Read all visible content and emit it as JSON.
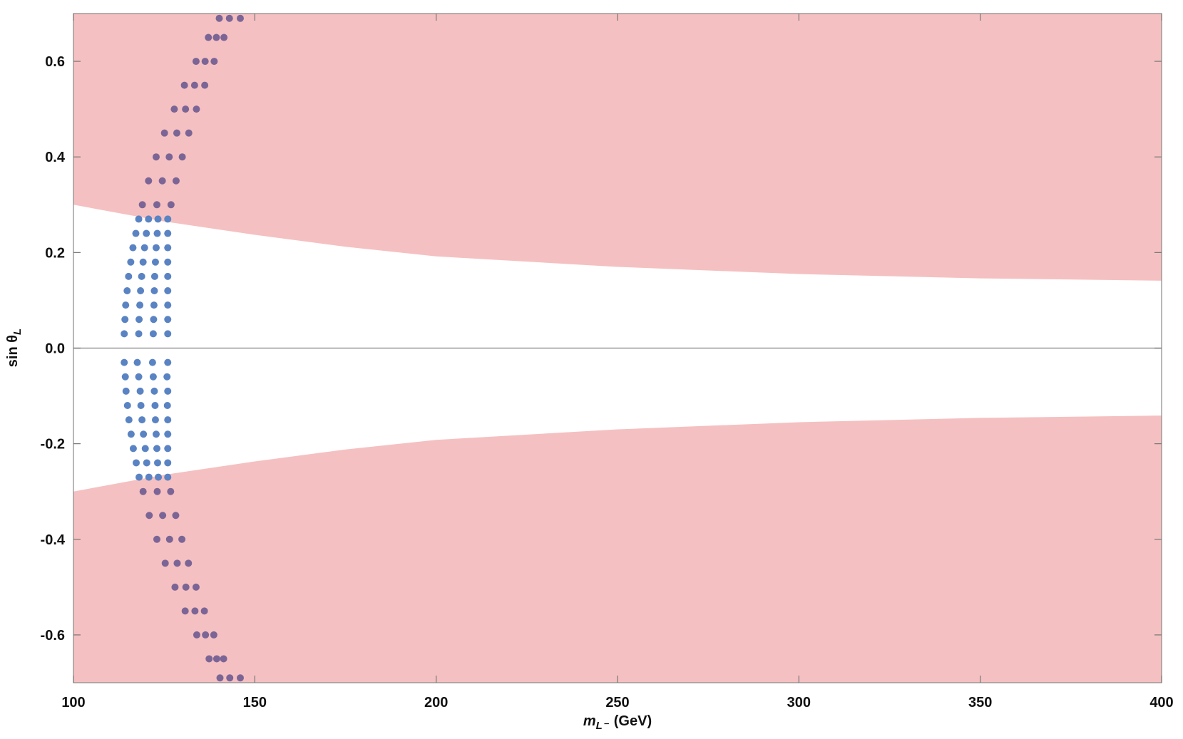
{
  "chart_data": {
    "type": "scatter",
    "x_label": {
      "symbol": "m",
      "subscript": "L⁻",
      "unit": "(GeV)"
    },
    "y_label": {
      "symbol": "sin θ",
      "subscript": "L"
    },
    "xlim": [
      100,
      400
    ],
    "ylim": [
      -0.7,
      0.7
    ],
    "xticks": [
      100,
      150,
      200,
      250,
      300,
      350,
      400
    ],
    "yticks": [
      -0.6,
      -0.4,
      -0.2,
      {
        "value": 0,
        "label": "0.0"
      },
      0.2,
      0.4,
      0.6
    ],
    "excluded_region": {
      "color": "#f5c0c1",
      "x": [
        100,
        125,
        150,
        175,
        200,
        250,
        300,
        350,
        400
      ],
      "upper": [
        0.3,
        0.265,
        0.237,
        0.212,
        0.192,
        0.17,
        0.155,
        0.146,
        0.141
      ],
      "lower": [
        -0.3,
        -0.265,
        -0.237,
        -0.212,
        -0.192,
        -0.17,
        -0.155,
        -0.146,
        -0.141
      ]
    },
    "series": [
      {
        "color": "#5a83c3",
        "x": [
          114,
          118,
          122,
          126,
          114.2,
          118.1,
          122.1,
          126,
          114.4,
          118.3,
          122.2,
          126,
          114.8,
          118.5,
          122.3,
          126,
          115.2,
          118.8,
          122.4,
          126,
          115.8,
          119.2,
          122.6,
          126,
          116.4,
          119.6,
          122.8,
          126,
          117.2,
          120.1,
          123.1,
          126,
          118,
          120.7,
          123.3,
          126,
          114,
          117.6,
          121.8,
          126,
          114.3,
          118,
          122,
          125.8,
          114.5,
          118.4,
          122.3,
          126,
          114.9,
          118.6,
          122.5,
          125.9,
          115.3,
          118.9,
          122.6,
          126,
          115.9,
          119.3,
          122.8,
          126,
          116.5,
          119.8,
          123,
          126,
          117.3,
          120.2,
          123.2,
          126,
          118.1,
          120.8,
          123.4,
          126
        ],
        "values": [
          0.03,
          0.03,
          0.03,
          0.03,
          0.06,
          0.06,
          0.06,
          0.06,
          0.09,
          0.09,
          0.09,
          0.09,
          0.12,
          0.12,
          0.12,
          0.12,
          0.15,
          0.15,
          0.15,
          0.15,
          0.18,
          0.18,
          0.18,
          0.18,
          0.21,
          0.21,
          0.21,
          0.21,
          0.24,
          0.24,
          0.24,
          0.24,
          0.27,
          0.27,
          0.27,
          0.27,
          -0.03,
          -0.03,
          -0.03,
          -0.03,
          -0.06,
          -0.06,
          -0.06,
          -0.06,
          -0.09,
          -0.09,
          -0.09,
          -0.09,
          -0.12,
          -0.12,
          -0.12,
          -0.12,
          -0.15,
          -0.15,
          -0.15,
          -0.15,
          -0.18,
          -0.18,
          -0.18,
          -0.18,
          -0.21,
          -0.21,
          -0.21,
          -0.21,
          -0.24,
          -0.24,
          -0.24,
          -0.24,
          -0.27,
          -0.27,
          -0.27,
          -0.27
        ]
      },
      {
        "color": "#7b6596",
        "x": [
          119,
          123,
          126.9,
          120.7,
          124.5,
          128.3,
          122.8,
          126.4,
          130,
          125.1,
          128.5,
          131.8,
          127.8,
          130.9,
          133.9,
          130.6,
          133.4,
          136.2,
          133.8,
          136.3,
          138.8,
          137.2,
          139.4,
          141.5,
          140.2,
          143,
          146,
          119.2,
          123.1,
          126.8,
          120.9,
          124.6,
          128.2,
          123,
          126.5,
          129.9,
          125.3,
          128.6,
          131.7,
          128,
          131,
          133.8,
          130.8,
          133.5,
          136.1,
          134,
          136.4,
          138.7,
          137.4,
          139.5,
          141.4,
          140.4,
          143.1,
          146
        ],
        "values": [
          0.3,
          0.3,
          0.3,
          0.35,
          0.35,
          0.35,
          0.4,
          0.4,
          0.4,
          0.45,
          0.45,
          0.45,
          0.5,
          0.5,
          0.5,
          0.55,
          0.55,
          0.55,
          0.6,
          0.6,
          0.6,
          0.65,
          0.65,
          0.65,
          0.69,
          0.69,
          0.69,
          -0.3,
          -0.3,
          -0.3,
          -0.35,
          -0.35,
          -0.35,
          -0.4,
          -0.4,
          -0.4,
          -0.45,
          -0.45,
          -0.45,
          -0.5,
          -0.5,
          -0.5,
          -0.55,
          -0.55,
          -0.55,
          -0.6,
          -0.6,
          -0.6,
          -0.65,
          -0.65,
          -0.65,
          -0.69,
          -0.69,
          -0.69
        ]
      }
    ]
  }
}
